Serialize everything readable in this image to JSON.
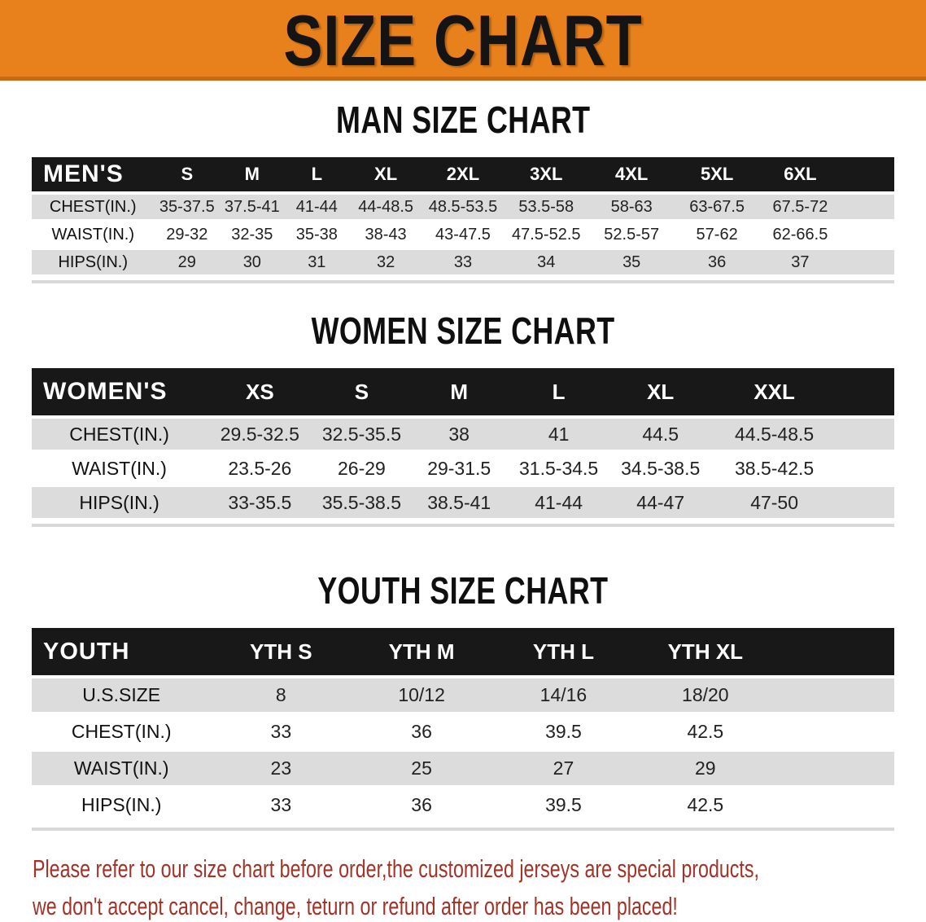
{
  "banner": {
    "title": "SIZE CHART"
  },
  "sections": [
    {
      "id": "men",
      "heading": "MAN SIZE CHART",
      "table": {
        "header_label": "MEN'S",
        "columns": [
          "S",
          "M",
          "L",
          "XL",
          "2XL",
          "3XL",
          "4XL",
          "5XL",
          "6XL"
        ],
        "rows": [
          {
            "label": "CHEST(IN.)",
            "values": [
              "35-37.5",
              "37.5-41",
              "41-44",
              "44-48.5",
              "48.5-53.5",
              "53.5-58",
              "58-63",
              "63-67.5",
              "67.5-72"
            ]
          },
          {
            "label": "WAIST(IN.)",
            "values": [
              "29-32",
              "32-35",
              "35-38",
              "38-43",
              "43-47.5",
              "47.5-52.5",
              "52.5-57",
              "57-62",
              "62-66.5"
            ]
          },
          {
            "label": "HIPS(IN.)",
            "values": [
              "29",
              "30",
              "31",
              "32",
              "33",
              "34",
              "35",
              "36",
              "37"
            ]
          }
        ]
      }
    },
    {
      "id": "women",
      "heading": "WOMEN SIZE CHART",
      "table": {
        "header_label": "WOMEN'S",
        "columns": [
          "XS",
          "S",
          "M",
          "L",
          "XL",
          "XXL"
        ],
        "rows": [
          {
            "label": "CHEST(IN.)",
            "values": [
              "29.5-32.5",
              "32.5-35.5",
              "38",
              "41",
              "44.5",
              "44.5-48.5"
            ]
          },
          {
            "label": "WAIST(IN.)",
            "values": [
              "23.5-26",
              "26-29",
              "29-31.5",
              "31.5-34.5",
              "34.5-38.5",
              "38.5-42.5"
            ]
          },
          {
            "label": "HIPS(IN.)",
            "values": [
              "33-35.5",
              "35.5-38.5",
              "38.5-41",
              "41-44",
              "44-47",
              "47-50"
            ]
          }
        ]
      }
    },
    {
      "id": "youth",
      "heading": "YOUTH SIZE CHART",
      "table": {
        "header_label": "YOUTH",
        "columns": [
          "YTH S",
          "YTH M",
          "YTH L",
          "YTH XL"
        ],
        "rows": [
          {
            "label": "U.S.SIZE",
            "values": [
              "8",
              "10/12",
              "14/16",
              "18/20"
            ]
          },
          {
            "label": "CHEST(IN.)",
            "values": [
              "33",
              "36",
              "39.5",
              "42.5"
            ]
          },
          {
            "label": "WAIST(IN.)",
            "values": [
              "23",
              "25",
              "27",
              "29"
            ]
          },
          {
            "label": "HIPS(IN.)",
            "values": [
              "33",
              "36",
              "39.5",
              "42.5"
            ]
          }
        ]
      }
    }
  ],
  "footer": {
    "line1": "Please refer to our size chart before order,the customized jerseys are special products,",
    "line2": "we don't accept cancel, change, teturn or refund after order has been placed!"
  },
  "colors": {
    "banner_orange": "#E8811C",
    "banner_border": "#C96A12",
    "header_black": "#181818",
    "header_text": "#FFFFFF",
    "row_shaded": "#DCDCDC",
    "row_plain": "#FFFFFF",
    "data_text": "#222222",
    "notice_red": "#A33227"
  }
}
